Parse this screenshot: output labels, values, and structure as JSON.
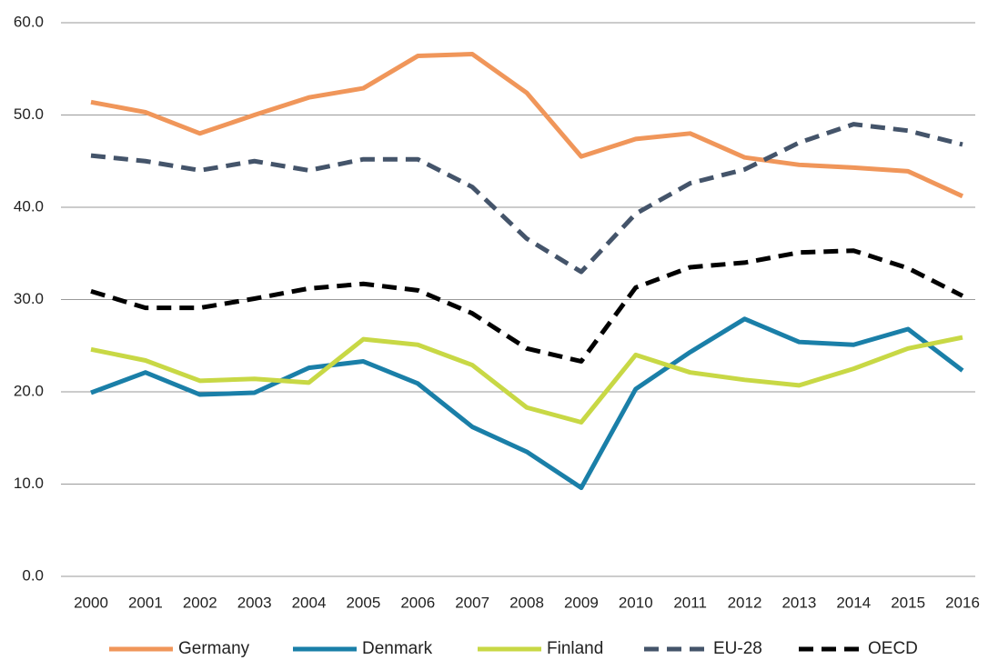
{
  "chart_data": {
    "type": "line",
    "categories": [
      "2000",
      "2001",
      "2002",
      "2003",
      "2004",
      "2005",
      "2006",
      "2007",
      "2008",
      "2009",
      "2010",
      "2011",
      "2012",
      "2013",
      "2014",
      "2015",
      "2016"
    ],
    "ylim": [
      0,
      60
    ],
    "yticks": [
      {
        "value": 0,
        "label": "0.0"
      },
      {
        "value": 10,
        "label": "10.0"
      },
      {
        "value": 20,
        "label": "20.0"
      },
      {
        "value": 30,
        "label": "30.0"
      },
      {
        "value": 40,
        "label": "40.0"
      },
      {
        "value": 50,
        "label": "50.0"
      },
      {
        "value": 60,
        "label": "60.0"
      }
    ],
    "grid": true,
    "legend": "bottom",
    "series": [
      {
        "name": "Germany",
        "color": "#f0965a",
        "dash": false,
        "values": [
          51.4,
          50.3,
          48.0,
          50.0,
          51.9,
          52.9,
          56.4,
          56.6,
          52.4,
          45.5,
          47.4,
          48.0,
          45.4,
          44.6,
          44.3,
          43.9,
          41.2
        ]
      },
      {
        "name": "Denmark",
        "color": "#1a7fa8",
        "dash": false,
        "values": [
          19.9,
          22.1,
          19.7,
          19.9,
          22.6,
          23.3,
          20.9,
          16.2,
          13.5,
          9.6,
          20.3,
          24.3,
          27.9,
          25.4,
          25.1,
          26.8,
          22.3
        ]
      },
      {
        "name": "Finland",
        "color": "#c8d845",
        "dash": false,
        "values": [
          24.6,
          23.4,
          21.2,
          21.4,
          21.0,
          25.7,
          25.1,
          22.9,
          18.3,
          16.7,
          24.0,
          22.1,
          21.3,
          20.7,
          22.5,
          24.7,
          25.9
        ]
      },
      {
        "name": "EU-28",
        "color": "#44546a",
        "dash": true,
        "values": [
          45.6,
          45.0,
          44.0,
          45.0,
          44.0,
          45.2,
          45.2,
          42.2,
          36.6,
          33.0,
          39.3,
          42.6,
          44.1,
          47.0,
          49.0,
          48.3,
          46.8
        ]
      },
      {
        "name": "OECD",
        "color": "#000000",
        "dash": true,
        "values": [
          30.9,
          29.1,
          29.1,
          30.1,
          31.2,
          31.7,
          31.0,
          28.5,
          24.7,
          23.3,
          31.3,
          33.5,
          34.0,
          35.1,
          35.3,
          33.4,
          30.4
        ]
      }
    ]
  }
}
